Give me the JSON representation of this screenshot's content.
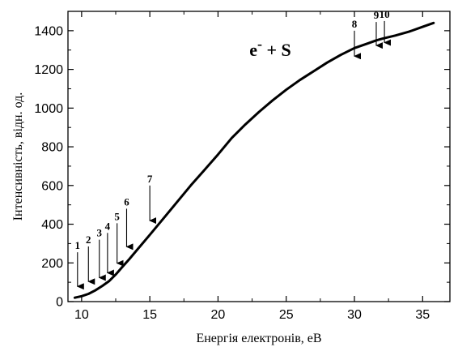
{
  "chart_data": {
    "type": "line",
    "title": {
      "base": "e",
      "sup": "-",
      "rest": " + S"
    },
    "xlabel": "Енергія електронів, eВ",
    "ylabel": "Інтенсивність, відн. од.",
    "xlim": [
      9,
      37
    ],
    "ylim": [
      0,
      1500
    ],
    "x_ticks": [
      10,
      15,
      20,
      25,
      30,
      35
    ],
    "y_ticks": [
      0,
      200,
      400,
      600,
      800,
      1000,
      1200,
      1400
    ],
    "grid": false,
    "series": [
      {
        "x": [
          9.5,
          10.0,
          10.5,
          11.0,
          11.5,
          12.0,
          12.5,
          13.0,
          13.5,
          14.0,
          15.0,
          16.0,
          17.0,
          18.0,
          19.0,
          20.0,
          21.0,
          22.0,
          23.0,
          24.0,
          25.0,
          26.0,
          27.0,
          28.0,
          29.0,
          30.0,
          31.0,
          31.6,
          32.1,
          33.0,
          34.0,
          35.0,
          35.8
        ],
        "y": [
          20,
          28,
          40,
          58,
          80,
          105,
          140,
          180,
          220,
          262,
          345,
          430,
          515,
          600,
          680,
          760,
          845,
          915,
          980,
          1040,
          1095,
          1145,
          1190,
          1235,
          1275,
          1310,
          1335,
          1350,
          1360,
          1375,
          1395,
          1420,
          1440
        ]
      }
    ],
    "annotations": [
      {
        "label": "1",
        "x": 9.7,
        "y_top": 255,
        "y_tip": 45
      },
      {
        "label": "2",
        "x": 10.5,
        "y_top": 285,
        "y_tip": 70
      },
      {
        "label": "3",
        "x": 11.3,
        "y_top": 320,
        "y_tip": 90
      },
      {
        "label": "4",
        "x": 11.9,
        "y_top": 355,
        "y_tip": 115
      },
      {
        "label": "5",
        "x": 12.6,
        "y_top": 405,
        "y_tip": 165
      },
      {
        "label": "6",
        "x": 13.3,
        "y_top": 480,
        "y_tip": 250
      },
      {
        "label": "7",
        "x": 15.0,
        "y_top": 600,
        "y_tip": 385
      },
      {
        "label": "8",
        "x": 30.0,
        "y_top": 1400,
        "y_tip": 1235
      },
      {
        "label": "9",
        "x": 31.6,
        "y_top": 1445,
        "y_tip": 1290
      },
      {
        "label": "10",
        "x": 32.2,
        "y_top": 1450,
        "y_tip": 1305
      }
    ]
  }
}
